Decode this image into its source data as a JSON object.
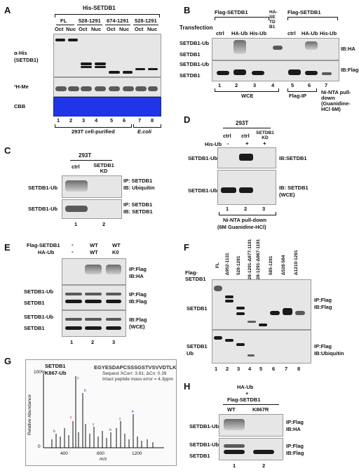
{
  "panel_letters": [
    "A",
    "B",
    "C",
    "D",
    "E",
    "F",
    "G",
    "H"
  ],
  "A": {
    "header": "His-SETDB1",
    "groups": [
      "FL",
      "528-1291",
      "674-1291",
      "528-1291"
    ],
    "fractions": [
      "Oct",
      "Nuc",
      "Oct",
      "Nuc",
      "Oct",
      "Nuc",
      "Oct",
      "Nuc"
    ],
    "row_labels": [
      "α-His",
      "(SETDB1)",
      "³H-Me",
      "CBB"
    ],
    "lanes": [
      "1",
      "2",
      "3",
      "4",
      "5",
      "6",
      "7",
      "8"
    ],
    "source_293t": "293T cell-purified",
    "source_ecoli": "E.coli"
  },
  "B": {
    "transfection": "Transfection",
    "flag_setdb1": "Flag-SETDB1",
    "cols1": [
      "ctrl",
      "HA-Ub",
      "His-Ub"
    ],
    "ha_setdb1": "HA-SETDB1",
    "cols2": [
      "ctrl",
      "HA-Ub",
      "His-Ub"
    ],
    "labels": [
      "SETDB1-Ub",
      "SETDB1",
      "SETDB1-Ub",
      "SETDB1"
    ],
    "ib": [
      "IB:HA",
      "IB:Flag"
    ],
    "lanes": [
      "1",
      "2",
      "3",
      "4",
      "5",
      "6",
      "7"
    ],
    "groups": [
      "WCE",
      "Flag-IP",
      "Ni-NTA pull-down (Guanidine-HCl 6M)"
    ]
  },
  "C": {
    "cell": "293T",
    "cols": [
      "ctrl",
      "SETDB1 KD"
    ],
    "label": "SETDB1-Ub",
    "ip1": [
      "IP: SETDB1",
      "IB: Ubiquitin"
    ],
    "ip2": [
      "IP: SETDB1",
      "IB: SETDB1"
    ],
    "lanes": [
      "1",
      "2"
    ]
  },
  "D": {
    "cell": "293T",
    "cols": [
      "ctrl",
      "ctrl",
      "SETDB1 KD"
    ],
    "his_ub": "His-Ub",
    "signs": [
      "-",
      "+",
      "+"
    ],
    "label": "SETDB1-Ub",
    "ib1": "IB:SETDB1",
    "ib2": [
      "IB: SETDB1",
      "(WCE)"
    ],
    "lanes": [
      "1",
      "2",
      "3"
    ],
    "footer": [
      "Ni-NTA pull-down",
      "(6M Guanidine-HCl)"
    ]
  },
  "E": {
    "rows": [
      "Flag-SETDB1",
      "HA-Ub"
    ],
    "r1": [
      "-",
      "WT",
      "WT"
    ],
    "r2": [
      "-",
      "WT",
      "K0"
    ],
    "labels": [
      "SETDB1-Ub",
      "SETDB1",
      "SETDB1-Ub",
      "SETDB1"
    ],
    "ip1": [
      "IP:Flag",
      "IB:HA"
    ],
    "ip2": [
      "IP:Flag",
      "IB:Flag"
    ],
    "ip3": [
      "IB:Flag",
      "(WCE)"
    ],
    "lanes": [
      "1",
      "2",
      "3"
    ]
  },
  "F": {
    "row": "Flag-SETDB1",
    "constructs": [
      "FL",
      "Δ952-1131",
      "528-1291",
      "528-1291-Δ877-1191",
      "528-1291-Δ867-1191",
      "585-1291",
      "Δ528-584",
      "Δ1210-1291"
    ],
    "labels": [
      "SETDB1",
      "SETDB1",
      "Ub"
    ],
    "ip1": [
      "IP:Flag",
      "IB:Flag"
    ],
    "ip2": [
      "IP:Flag",
      "IB:Ubiquitin"
    ],
    "lanes": [
      "1",
      "2",
      "3",
      "4",
      "5",
      "6",
      "7",
      "8"
    ]
  },
  "G": {
    "title": [
      "SETDB1",
      "K867-Ub"
    ],
    "peptide": "EGYESDAPCSSSGSTVSVVDTLK",
    "notes": [
      "Sequest XCorr: 3.91; ΔCn: 0.39",
      "Intact peptide mass error = 4.3ppm"
    ],
    "ylabel": "Relative Abundance",
    "xlabel": "m/z",
    "yticks": [
      "100%",
      "0"
    ],
    "xticks": [
      "400",
      "800",
      "1200"
    ],
    "accent": "#e02020",
    "accent2": "#2040d0"
  },
  "H": {
    "header": [
      "HA-Ub",
      "+",
      "Flag-SETDB1"
    ],
    "cols": [
      "WT",
      "K867R"
    ],
    "labels": [
      "SETDB1-Ub",
      "SETDB1-Ub",
      "SETDB1"
    ],
    "ip1": [
      "IP:Flag",
      "IB:HA"
    ],
    "ip2": [
      "IP:Flag",
      "IB:Flag"
    ],
    "lanes": [
      "1",
      "2"
    ]
  }
}
